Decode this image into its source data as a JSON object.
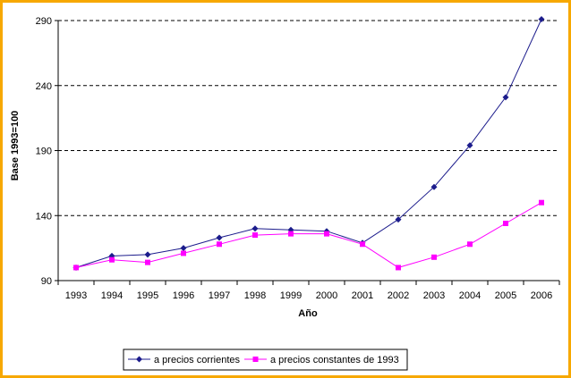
{
  "chart_data": {
    "type": "line",
    "title": "",
    "xlabel": "Año",
    "ylabel": "Base 1993=100",
    "ylim": [
      90,
      290
    ],
    "yticks": [
      90,
      140,
      190,
      240,
      290
    ],
    "grid": "horizontal dashed",
    "legend_position": "bottom",
    "x": [
      "1993",
      "1994",
      "1995",
      "1996",
      "1997",
      "1998",
      "1999",
      "2000",
      "2001",
      "2002",
      "2003",
      "2004",
      "2005",
      "2006"
    ],
    "series": [
      {
        "name": "a precios corrientes",
        "color": "#1c1c8c",
        "marker": "diamond",
        "values": [
          100,
          109,
          110,
          115,
          123,
          130,
          129,
          128,
          119,
          137,
          162,
          194,
          231,
          291
        ]
      },
      {
        "name": "a precios constantes de 1993",
        "color": "#ff00ff",
        "marker": "square",
        "values": [
          100,
          106,
          104,
          111,
          118,
          125,
          126,
          126,
          118,
          100,
          108,
          118,
          134,
          150
        ]
      }
    ]
  },
  "colors": {
    "frame": "#f7a800",
    "grid": "#000000"
  }
}
